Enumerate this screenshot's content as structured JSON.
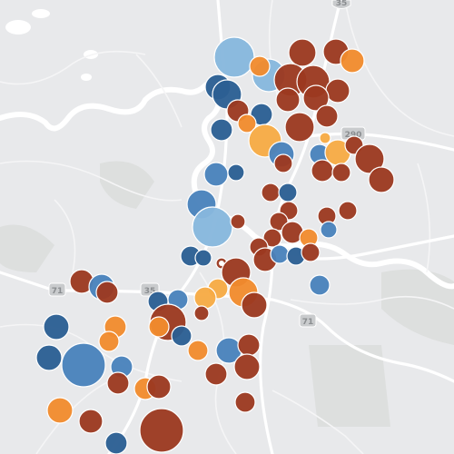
{
  "map": {
    "shields": [
      {
        "id": "i35-north",
        "label": "35"
      },
      {
        "id": "us290-east",
        "label": "290"
      },
      {
        "id": "tx71-west",
        "label": "71"
      },
      {
        "id": "mopac-mid",
        "label": "35"
      },
      {
        "id": "tx71-east",
        "label": "71"
      }
    ],
    "colors": {
      "background": "#e8e9eb",
      "water": "#ffffff",
      "road": "#ffffff",
      "road_minor": "#f4f4f5",
      "park": "#dcdedd",
      "dark_red": "#9c3920",
      "orange": "#f18b2e",
      "light_orange": "#f7ab45",
      "dark_blue": "#2c5f93",
      "mid_blue": "#4a82bb",
      "light_blue": "#87b7dd",
      "marker_stroke": "#ffffff"
    }
  }
}
